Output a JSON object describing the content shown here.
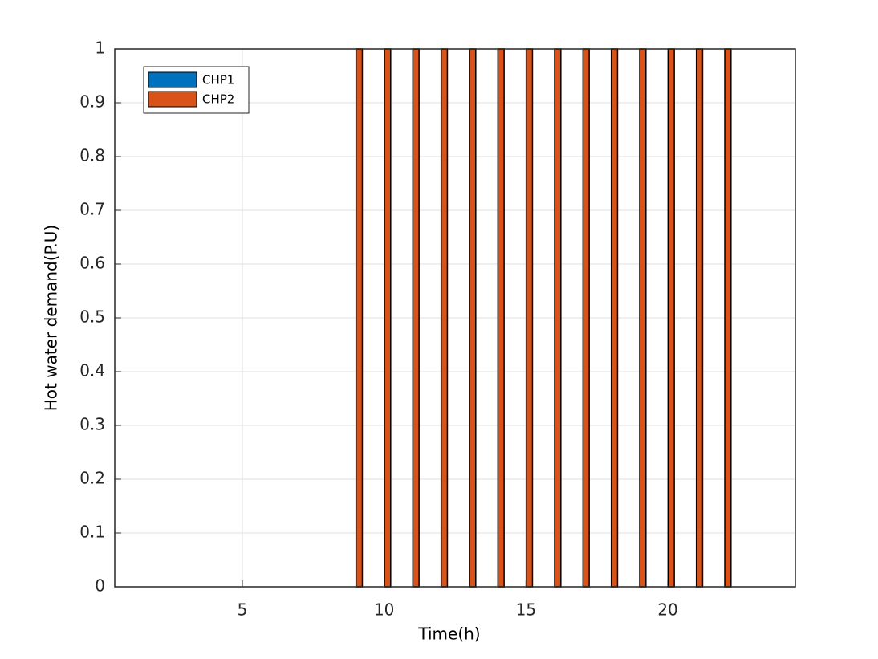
{
  "chart_data": {
    "type": "bar",
    "xlabel": "Time(h)",
    "ylabel": "Hot water demand(P.U)",
    "x": [
      1,
      2,
      3,
      4,
      5,
      6,
      7,
      8,
      9,
      10,
      11,
      12,
      13,
      14,
      15,
      16,
      17,
      18,
      19,
      20,
      21,
      22,
      23,
      24
    ],
    "series": [
      {
        "name": "CHP1",
        "color": "#0072bd",
        "values": [
          0,
          0,
          0,
          0,
          0,
          0,
          0,
          0,
          0,
          0,
          0,
          0,
          0,
          0,
          0,
          0,
          0,
          0,
          0,
          0,
          0,
          0,
          0,
          0
        ]
      },
      {
        "name": "CHP2",
        "color": "#d95319",
        "values": [
          0,
          0,
          0,
          0,
          0,
          0,
          0,
          0,
          1,
          1,
          1,
          1,
          1,
          1,
          1,
          1,
          1,
          1,
          1,
          1,
          1,
          1,
          0,
          0
        ]
      }
    ],
    "xlim": [
      0.5,
      24.5
    ],
    "xticks": [
      5,
      10,
      15,
      20
    ],
    "ylim": [
      0,
      1
    ],
    "yticks": [
      0,
      0.1,
      0.2,
      0.3,
      0.4,
      0.5,
      0.6,
      0.7,
      0.8,
      0.9,
      1
    ],
    "grid": true,
    "legend": "top-left"
  }
}
